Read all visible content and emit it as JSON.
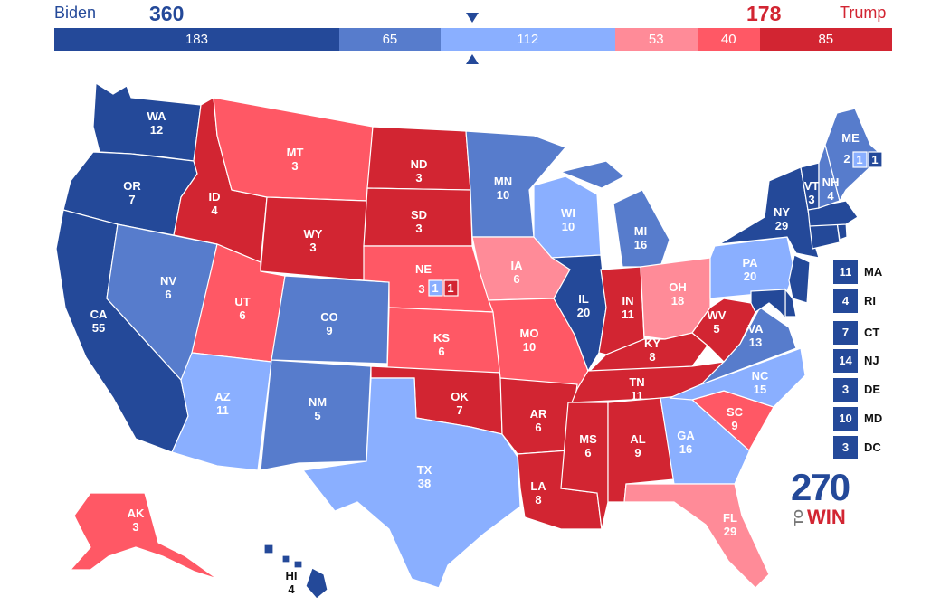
{
  "header": {
    "left_name": "Biden",
    "left_votes": "360",
    "right_name": "Trump",
    "right_votes": "178"
  },
  "bar": [
    {
      "value": 183,
      "label": "183",
      "color": "#244999"
    },
    {
      "value": 65,
      "label": "65",
      "color": "#577ccc"
    },
    {
      "value": 112,
      "label": "112",
      "color": "#8aafff"
    },
    {
      "value": 53,
      "label": "53",
      "color": "#ff8b98"
    },
    {
      "value": 40,
      "label": "40",
      "color": "#ff5865"
    },
    {
      "value": 85,
      "label": "85",
      "color": "#d22532"
    }
  ],
  "colors": {
    "safe_d": "#244999",
    "likely_d": "#577ccc",
    "lean_d": "#8aafff",
    "lean_r": "#ff8b98",
    "likely_r": "#ff5865",
    "safe_r": "#d22532"
  },
  "states": {
    "WA": {
      "abbr": "WA",
      "ev": "12"
    },
    "OR": {
      "abbr": "OR",
      "ev": "7"
    },
    "CA": {
      "abbr": "CA",
      "ev": "55"
    },
    "NV": {
      "abbr": "NV",
      "ev": "6"
    },
    "ID": {
      "abbr": "ID",
      "ev": "4"
    },
    "MT": {
      "abbr": "MT",
      "ev": "3"
    },
    "WY": {
      "abbr": "WY",
      "ev": "3"
    },
    "UT": {
      "abbr": "UT",
      "ev": "6"
    },
    "AZ": {
      "abbr": "AZ",
      "ev": "11"
    },
    "CO": {
      "abbr": "CO",
      "ev": "9"
    },
    "NM": {
      "abbr": "NM",
      "ev": "5"
    },
    "ND": {
      "abbr": "ND",
      "ev": "3"
    },
    "SD": {
      "abbr": "SD",
      "ev": "3"
    },
    "NE": {
      "abbr": "NE",
      "ev": "3"
    },
    "KS": {
      "abbr": "KS",
      "ev": "6"
    },
    "OK": {
      "abbr": "OK",
      "ev": "7"
    },
    "TX": {
      "abbr": "TX",
      "ev": "38"
    },
    "MN": {
      "abbr": "MN",
      "ev": "10"
    },
    "IA": {
      "abbr": "IA",
      "ev": "6"
    },
    "MO": {
      "abbr": "MO",
      "ev": "10"
    },
    "AR": {
      "abbr": "AR",
      "ev": "6"
    },
    "LA": {
      "abbr": "LA",
      "ev": "8"
    },
    "WI": {
      "abbr": "WI",
      "ev": "10"
    },
    "IL": {
      "abbr": "IL",
      "ev": "20"
    },
    "MI": {
      "abbr": "MI",
      "ev": "16"
    },
    "IN": {
      "abbr": "IN",
      "ev": "11"
    },
    "OH": {
      "abbr": "OH",
      "ev": "18"
    },
    "KY": {
      "abbr": "KY",
      "ev": "8"
    },
    "TN": {
      "abbr": "TN",
      "ev": "11"
    },
    "MS": {
      "abbr": "MS",
      "ev": "6"
    },
    "AL": {
      "abbr": "AL",
      "ev": "9"
    },
    "GA": {
      "abbr": "GA",
      "ev": "16"
    },
    "FL": {
      "abbr": "FL",
      "ev": "29"
    },
    "SC": {
      "abbr": "SC",
      "ev": "9"
    },
    "NC": {
      "abbr": "NC",
      "ev": "15"
    },
    "VA": {
      "abbr": "VA",
      "ev": "13"
    },
    "WV": {
      "abbr": "WV",
      "ev": "5"
    },
    "PA": {
      "abbr": "PA",
      "ev": "20"
    },
    "NY": {
      "abbr": "NY",
      "ev": "29"
    },
    "VT": {
      "abbr": "VT",
      "ev": "3"
    },
    "NH": {
      "abbr": "NH",
      "ev": "4"
    },
    "ME": {
      "abbr": "ME",
      "ev": "2"
    },
    "AK": {
      "abbr": "AK",
      "ev": "3"
    },
    "HI": {
      "abbr": "HI",
      "ev": "4"
    }
  },
  "districts": {
    "me_cd1": "1",
    "me_cd2": "1",
    "ne_cd2": "1",
    "ne_cd1": "1"
  },
  "small_states": [
    {
      "abbr": "MA",
      "ev": "11"
    },
    {
      "abbr": "RI",
      "ev": "4"
    },
    {
      "abbr": "CT",
      "ev": "7"
    },
    {
      "abbr": "NJ",
      "ev": "14"
    },
    {
      "abbr": "DE",
      "ev": "3"
    },
    {
      "abbr": "MD",
      "ev": "10"
    },
    {
      "abbr": "DC",
      "ev": "3"
    }
  ],
  "logo": {
    "number": "270",
    "to": "TO",
    "win": "WIN"
  }
}
